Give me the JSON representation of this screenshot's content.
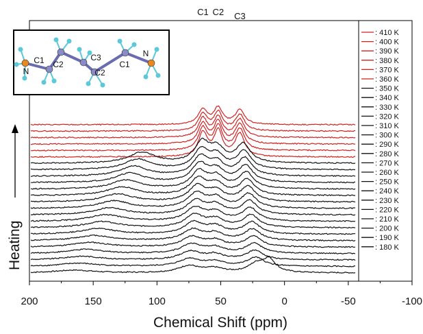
{
  "chart_data": {
    "type": "line",
    "title": "",
    "xlabel": "Chemical Shift (ppm)",
    "ylabel": "Heating",
    "xlim": [
      200,
      -100
    ],
    "xticks": [
      200,
      150,
      100,
      50,
      0,
      -50,
      -100
    ],
    "grid": false,
    "legend_position": "right",
    "series": [
      {
        "name": ": 410 K",
        "color": "#d42020"
      },
      {
        "name": ": 400 K",
        "color": "#d42020"
      },
      {
        "name": ": 390 K",
        "color": "#d42020"
      },
      {
        "name": ": 380 K",
        "color": "#d42020"
      },
      {
        "name": ": 370 K",
        "color": "#d42020"
      },
      {
        "name": ": 360 K",
        "color": "#d42020"
      },
      {
        "name": ": 350 K",
        "color": "#111111"
      },
      {
        "name": ": 340 K",
        "color": "#111111"
      },
      {
        "name": ": 330 K",
        "color": "#111111"
      },
      {
        "name": ": 320 K",
        "color": "#111111"
      },
      {
        "name": ": 310 K",
        "color": "#111111"
      },
      {
        "name": ": 300 K",
        "color": "#111111"
      },
      {
        "name": ": 290 K",
        "color": "#111111"
      },
      {
        "name": ": 280 K",
        "color": "#111111"
      },
      {
        "name": ": 270 K",
        "color": "#111111"
      },
      {
        "name": ": 260 K",
        "color": "#111111"
      },
      {
        "name": ": 250 K",
        "color": "#111111"
      },
      {
        "name": ": 240 K",
        "color": "#111111"
      },
      {
        "name": ": 230 K",
        "color": "#111111"
      },
      {
        "name": ": 220 K",
        "color": "#111111"
      },
      {
        "name": ": 210 K",
        "color": "#111111"
      },
      {
        "name": ": 200 K",
        "color": "#111111"
      },
      {
        "name": ": 190 K",
        "color": "#111111"
      },
      {
        "name": ": 180 K",
        "color": "#111111"
      }
    ],
    "peak_labels": [
      "C1",
      "C2",
      "C3"
    ],
    "inset": {
      "atom_labels": [
        "N",
        "C1",
        "C2",
        "C3",
        "C2",
        "C1",
        "N"
      ],
      "atom_colors": {
        "nitrogen": "#e8881e",
        "carbon": "#8a8cc8",
        "hydrogen": "#5cc8d8",
        "bond": "#6a6cb0"
      }
    }
  }
}
